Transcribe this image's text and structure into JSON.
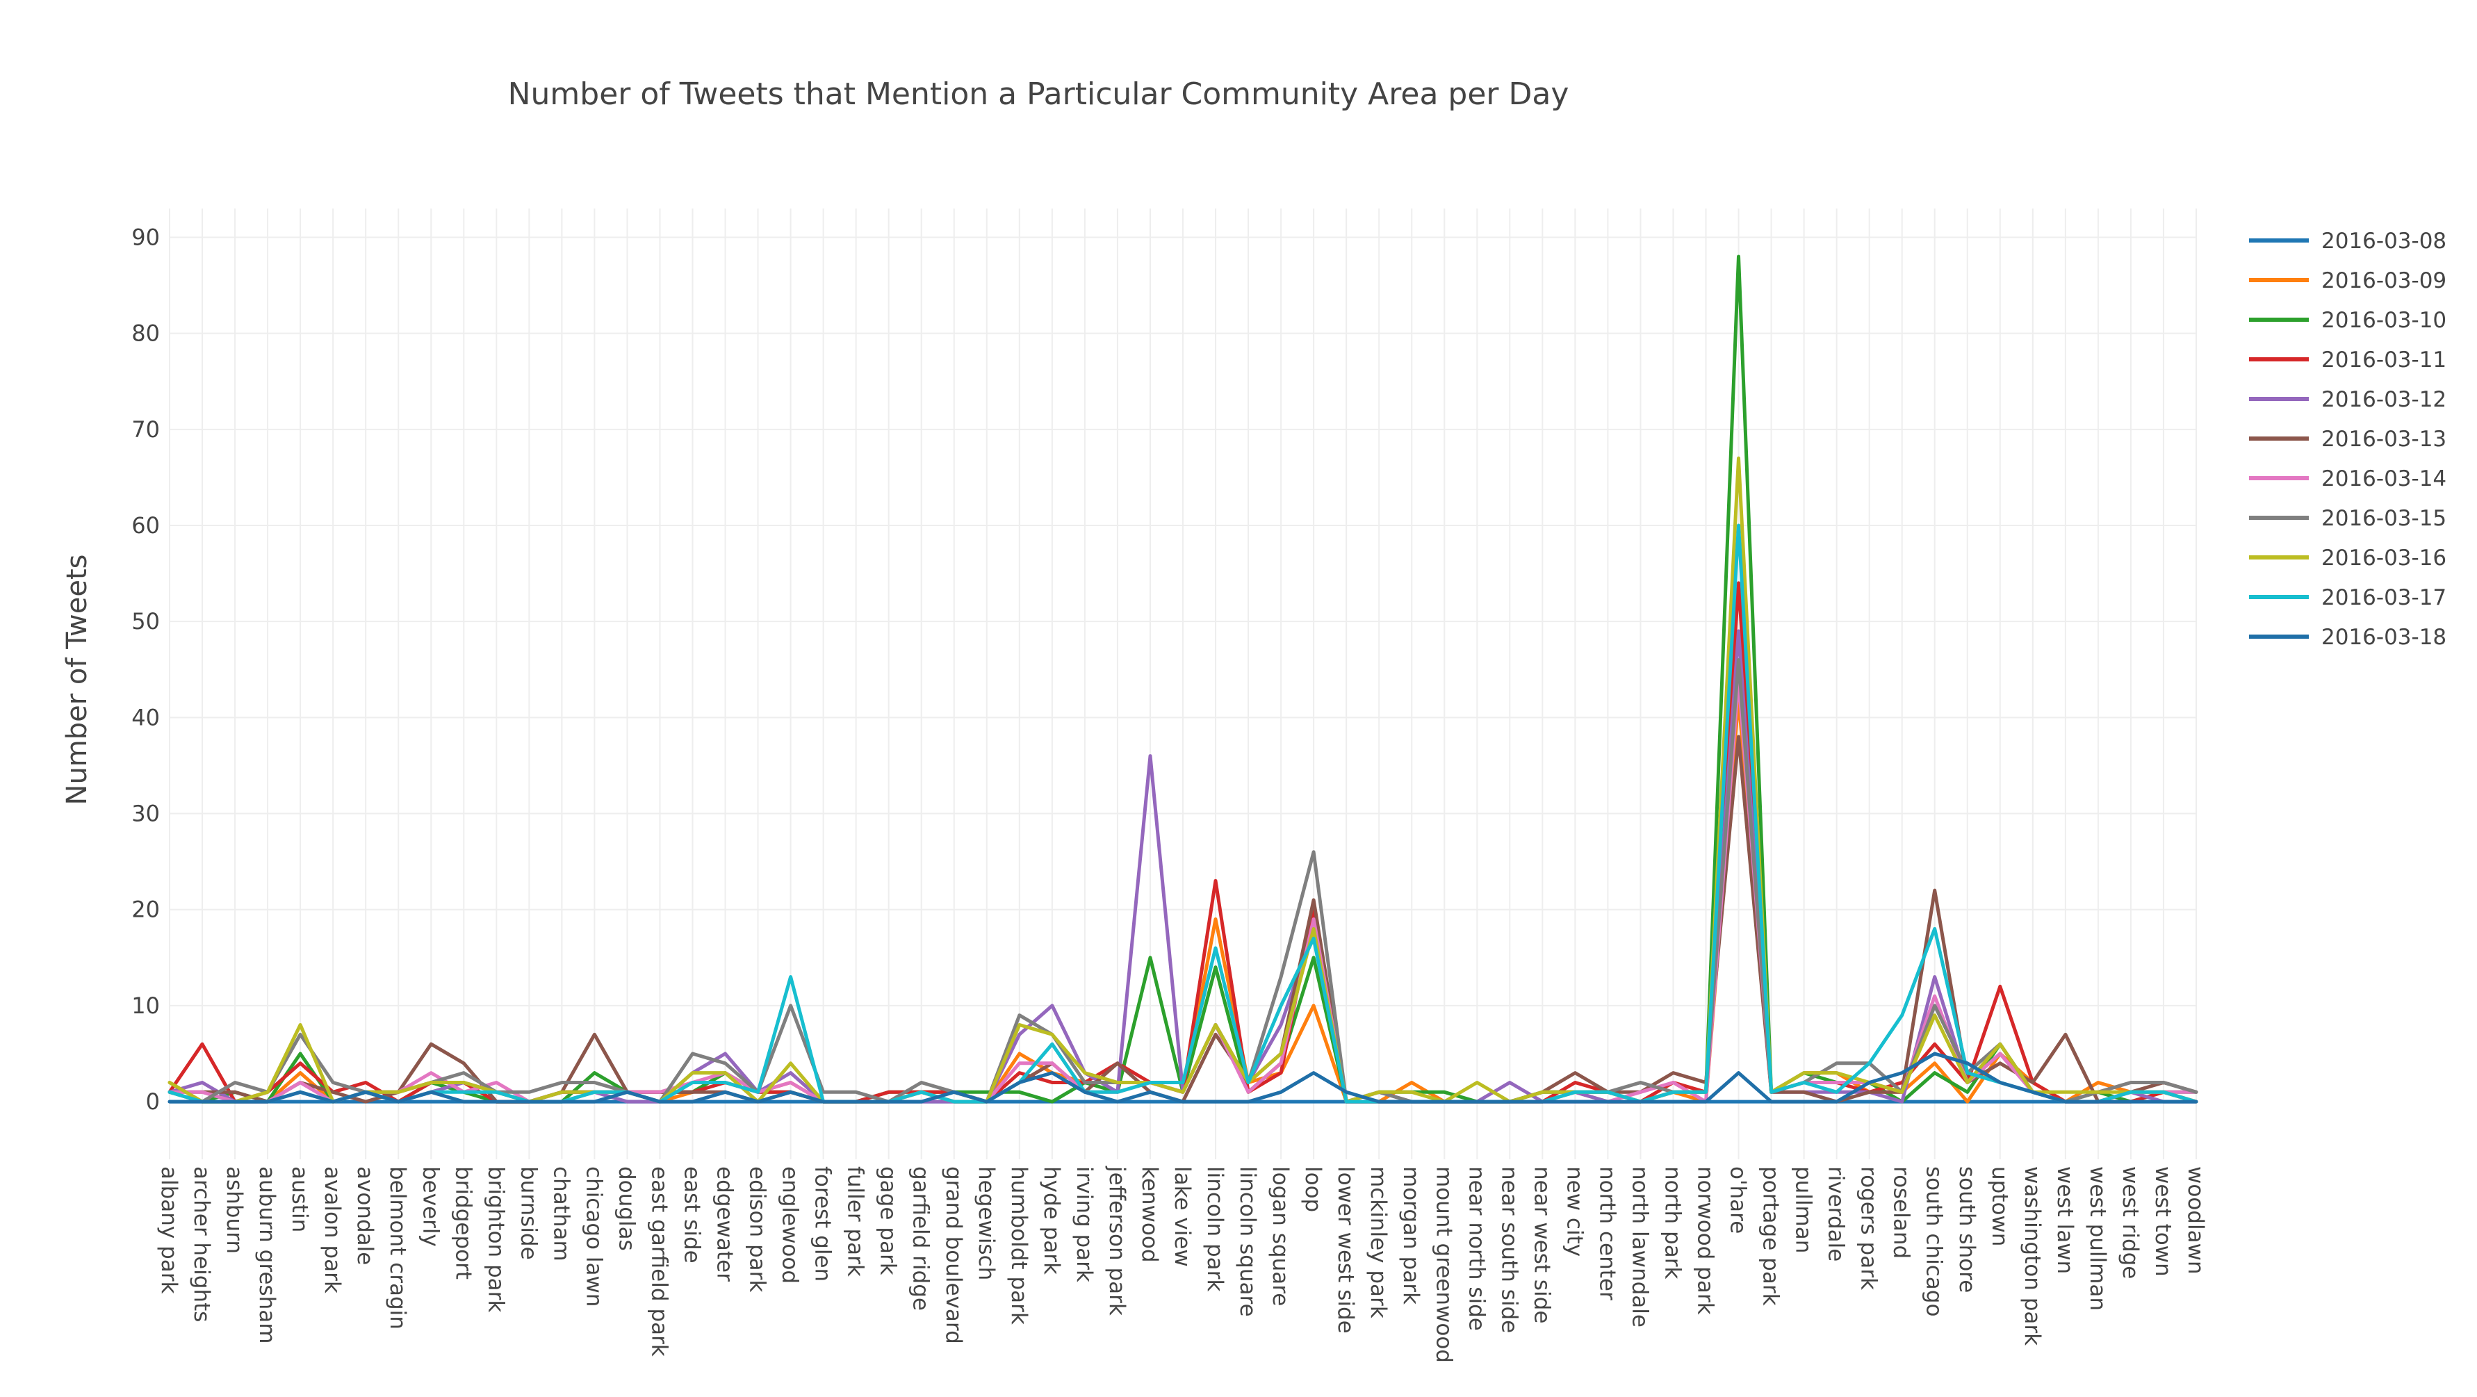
{
  "chart_data": {
    "type": "line",
    "title": "Number of Tweets that Mention a Particular Community Area per Day",
    "xlabel": "",
    "ylabel": "Number of Tweets",
    "ylim": [
      -6,
      93
    ],
    "yticks": [
      0,
      10,
      20,
      30,
      40,
      50,
      60,
      70,
      80,
      90
    ],
    "grid": true,
    "legend_position": "top-right",
    "categories": [
      "albany park",
      "archer heights",
      "ashburn",
      "auburn gresham",
      "austin",
      "avalon park",
      "avondale",
      "belmont cragin",
      "beverly",
      "bridgeport",
      "brighton park",
      "burnside",
      "chatham",
      "chicago lawn",
      "douglas",
      "east garfield park",
      "east side",
      "edgewater",
      "edison park",
      "englewood",
      "forest glen",
      "fuller park",
      "gage park",
      "garfield ridge",
      "grand boulevard",
      "hegewisch",
      "humboldt park",
      "hyde park",
      "irving park",
      "jefferson park",
      "kenwood",
      "lake view",
      "lincoln park",
      "lincoln square",
      "logan square",
      "loop",
      "lower west side",
      "mckinley park",
      "morgan park",
      "mount greenwood",
      "near north side",
      "near south side",
      "near west side",
      "new city",
      "north center",
      "north lawndale",
      "north park",
      "norwood park",
      "o'hare",
      "portage park",
      "pullman",
      "riverdale",
      "rogers park",
      "roseland",
      "south chicago",
      "south shore",
      "uptown",
      "washington park",
      "west lawn",
      "west pullman",
      "west ridge",
      "west town",
      "woodlawn"
    ],
    "series": [
      {
        "name": "2016-03-08",
        "color": "#1f77b4",
        "values": [
          0,
          0,
          0,
          0,
          0,
          0,
          0,
          0,
          0,
          0,
          0,
          0,
          0,
          0,
          0,
          0,
          0,
          0,
          0,
          0,
          0,
          0,
          0,
          0,
          0,
          0,
          0,
          0,
          0,
          0,
          0,
          0,
          0,
          0,
          0,
          0,
          0,
          0,
          0,
          0,
          0,
          0,
          0,
          0,
          0,
          0,
          0,
          0,
          0,
          0,
          0,
          0,
          0,
          0,
          0,
          0,
          0,
          0,
          0,
          0,
          0,
          0,
          0
        ]
      },
      {
        "name": "2016-03-09",
        "color": "#ff7f0e",
        "values": [
          2,
          0,
          0,
          0,
          3,
          0,
          1,
          1,
          2,
          2,
          0,
          0,
          1,
          1,
          1,
          0,
          1,
          3,
          1,
          2,
          0,
          0,
          0,
          1,
          1,
          0,
          5,
          3,
          2,
          2,
          2,
          1,
          19,
          2,
          3,
          10,
          0,
          0,
          2,
          0,
          0,
          0,
          0,
          1,
          0,
          0,
          1,
          0,
          42,
          1,
          3,
          3,
          1,
          1,
          4,
          0,
          5,
          2,
          0,
          2,
          1,
          1,
          0
        ]
      },
      {
        "name": "2016-03-10",
        "color": "#2ca02c",
        "values": [
          1,
          0,
          1,
          0,
          5,
          0,
          1,
          0,
          2,
          1,
          0,
          0,
          0,
          3,
          1,
          1,
          1,
          3,
          1,
          1,
          0,
          0,
          1,
          1,
          1,
          1,
          1,
          0,
          2,
          1,
          15,
          1,
          14,
          1,
          4,
          15,
          0,
          1,
          1,
          1,
          0,
          0,
          1,
          1,
          1,
          0,
          1,
          1,
          88,
          1,
          3,
          2,
          2,
          0,
          3,
          1,
          6,
          1,
          0,
          1,
          0,
          1,
          1
        ]
      },
      {
        "name": "2016-03-11",
        "color": "#d62728",
        "values": [
          1,
          6,
          0,
          1,
          4,
          1,
          2,
          0,
          2,
          2,
          0,
          0,
          1,
          1,
          1,
          1,
          1,
          2,
          1,
          1,
          0,
          0,
          1,
          1,
          1,
          0,
          3,
          2,
          2,
          4,
          2,
          1,
          23,
          1,
          3,
          20,
          0,
          0,
          0,
          0,
          0,
          0,
          0,
          2,
          1,
          0,
          2,
          1,
          54,
          1,
          2,
          2,
          1,
          2,
          6,
          2,
          12,
          2,
          0,
          0,
          0,
          1,
          0
        ]
      },
      {
        "name": "2016-03-12",
        "color": "#9467bd",
        "values": [
          1,
          2,
          0,
          0,
          2,
          0,
          1,
          0,
          1,
          2,
          1,
          0,
          1,
          1,
          0,
          0,
          3,
          5,
          1,
          3,
          0,
          0,
          0,
          0,
          0,
          0,
          7,
          10,
          3,
          1,
          36,
          1,
          8,
          2,
          8,
          18,
          0,
          1,
          0,
          0,
          0,
          2,
          0,
          1,
          0,
          0,
          1,
          1,
          49,
          1,
          1,
          1,
          1,
          0,
          13,
          2,
          5,
          1,
          0,
          0,
          1,
          0,
          0
        ]
      },
      {
        "name": "2016-03-13",
        "color": "#8c564b",
        "values": [
          1,
          1,
          1,
          0,
          2,
          1,
          0,
          1,
          6,
          4,
          0,
          0,
          1,
          7,
          1,
          1,
          1,
          1,
          0,
          1,
          0,
          0,
          0,
          1,
          0,
          0,
          2,
          4,
          1,
          4,
          1,
          0,
          7,
          2,
          5,
          21,
          0,
          0,
          0,
          0,
          0,
          0,
          1,
          3,
          1,
          1,
          3,
          2,
          38,
          1,
          1,
          0,
          1,
          1,
          22,
          2,
          4,
          2,
          7,
          0,
          1,
          2,
          1
        ]
      },
      {
        "name": "2016-03-14",
        "color": "#e377c2",
        "values": [
          1,
          1,
          0,
          0,
          2,
          0,
          1,
          1,
          3,
          1,
          2,
          0,
          0,
          1,
          1,
          1,
          2,
          3,
          1,
          2,
          0,
          0,
          0,
          1,
          0,
          0,
          4,
          4,
          1,
          1,
          2,
          1,
          8,
          1,
          4,
          19,
          0,
          0,
          0,
          0,
          0,
          0,
          0,
          0,
          0,
          1,
          2,
          0,
          44,
          1,
          2,
          2,
          2,
          1,
          11,
          2,
          5,
          1,
          0,
          0,
          1,
          1,
          1
        ]
      },
      {
        "name": "2016-03-15",
        "color": "#7f7f7f",
        "values": [
          1,
          0,
          2,
          1,
          7,
          2,
          1,
          1,
          2,
          3,
          1,
          1,
          2,
          2,
          1,
          0,
          5,
          4,
          1,
          10,
          1,
          1,
          0,
          2,
          1,
          0,
          9,
          7,
          2,
          2,
          2,
          1,
          8,
          2,
          13,
          26,
          0,
          1,
          0,
          0,
          0,
          0,
          1,
          1,
          1,
          2,
          1,
          1,
          46,
          1,
          2,
          4,
          4,
          1,
          10,
          3,
          6,
          1,
          0,
          1,
          2,
          2,
          1
        ]
      },
      {
        "name": "2016-03-16",
        "color": "#bcbd22",
        "values": [
          2,
          0,
          0,
          1,
          8,
          0,
          1,
          1,
          2,
          2,
          1,
          0,
          1,
          1,
          1,
          0,
          3,
          3,
          0,
          4,
          0,
          0,
          0,
          1,
          0,
          0,
          8,
          7,
          3,
          2,
          2,
          1,
          8,
          2,
          5,
          18,
          0,
          1,
          1,
          0,
          2,
          0,
          1,
          1,
          1,
          0,
          1,
          1,
          67,
          1,
          3,
          3,
          2,
          1,
          9,
          2,
          6,
          1,
          1,
          1,
          1,
          1,
          0
        ]
      },
      {
        "name": "2016-03-17",
        "color": "#17becf",
        "values": [
          1,
          0,
          0,
          0,
          1,
          0,
          1,
          0,
          1,
          1,
          1,
          0,
          0,
          1,
          1,
          0,
          2,
          2,
          1,
          13,
          0,
          0,
          0,
          1,
          0,
          0,
          2,
          6,
          1,
          1,
          2,
          2,
          16,
          2,
          10,
          17,
          0,
          0,
          0,
          0,
          0,
          0,
          0,
          1,
          1,
          0,
          1,
          1,
          60,
          1,
          2,
          1,
          4,
          9,
          18,
          3,
          2,
          1,
          0,
          0,
          1,
          1,
          0
        ]
      },
      {
        "name": "2016-03-18",
        "color": "#1f6fa8",
        "values": [
          0,
          0,
          0,
          0,
          1,
          0,
          1,
          0,
          1,
          0,
          0,
          0,
          0,
          0,
          1,
          0,
          0,
          1,
          0,
          1,
          0,
          0,
          0,
          0,
          1,
          0,
          2,
          3,
          1,
          0,
          1,
          0,
          0,
          0,
          1,
          3,
          1,
          0,
          0,
          0,
          0,
          0,
          0,
          0,
          0,
          0,
          0,
          0,
          3,
          0,
          0,
          0,
          2,
          3,
          5,
          4,
          2,
          1,
          0,
          0,
          0,
          0,
          0
        ]
      }
    ]
  }
}
